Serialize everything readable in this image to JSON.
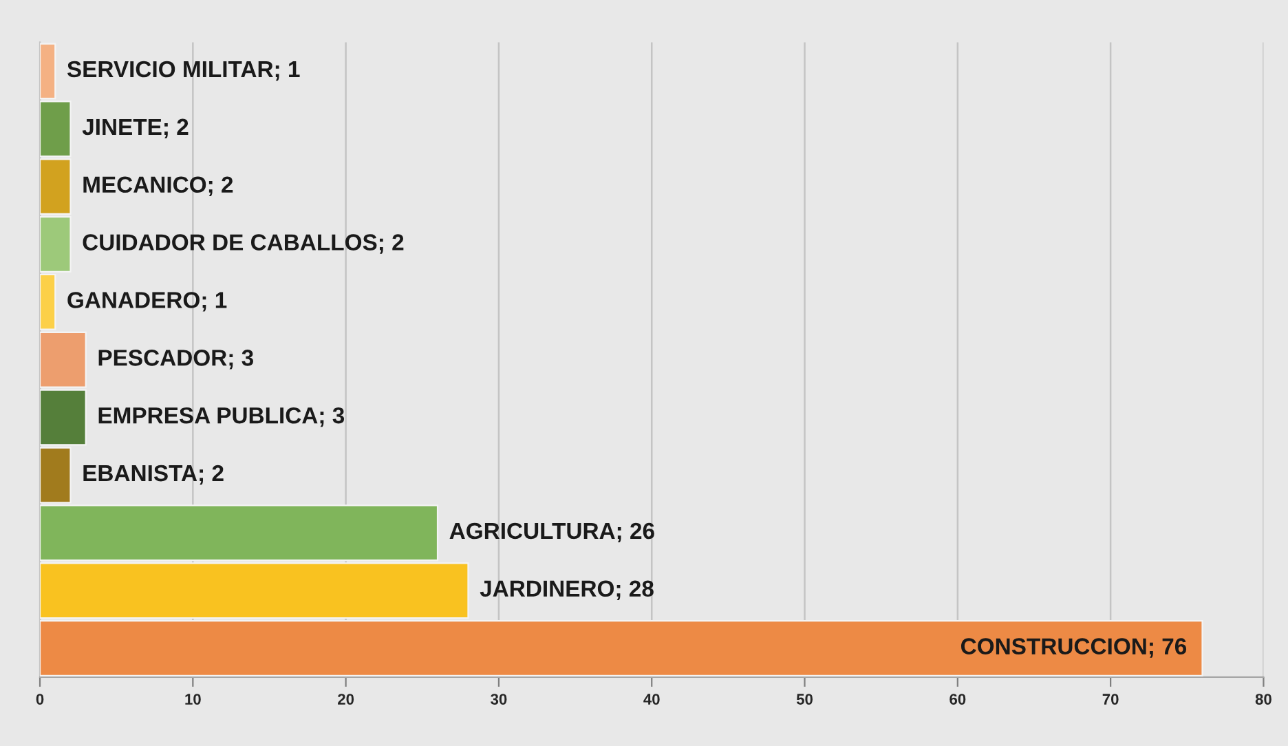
{
  "chart_data": {
    "type": "bar",
    "orientation": "horizontal",
    "categories": [
      null,
      null,
      null,
      null,
      null,
      null,
      null,
      null,
      null,
      null,
      null
    ],
    "values": [
      1,
      2,
      2,
      2,
      1,
      3,
      3,
      2,
      26,
      28,
      76
    ],
    "colors": [
      "#f4b183",
      "#6f9e4a",
      "#d2a21f",
      "#9dc97a",
      "#fcd048",
      "#ed9e6e",
      "#557f3a",
      "#a17b1d",
      "#80b55b",
      "#f9c220",
      "#ed8a45"
    ],
    "value_labels": [
      "SERVICIO MILITAR; 1",
      "JINETE; 2",
      "MECANICO; 2",
      "CUIDADOR DE CABALLOS; 2",
      "GANADERO; 1",
      "PESCADOR; 3",
      "EMPRESA PUBLICA; 3",
      "EBANISTA; 2",
      "AGRICULTURA; 26",
      "JARDINERO; 28",
      "CONSTRUCCION; 76"
    ],
    "xlim": [
      0,
      80
    ],
    "xticks": [
      0,
      10,
      20,
      30,
      40,
      50,
      60,
      70,
      80
    ],
    "grid": "x",
    "tick_labels": "x"
  }
}
